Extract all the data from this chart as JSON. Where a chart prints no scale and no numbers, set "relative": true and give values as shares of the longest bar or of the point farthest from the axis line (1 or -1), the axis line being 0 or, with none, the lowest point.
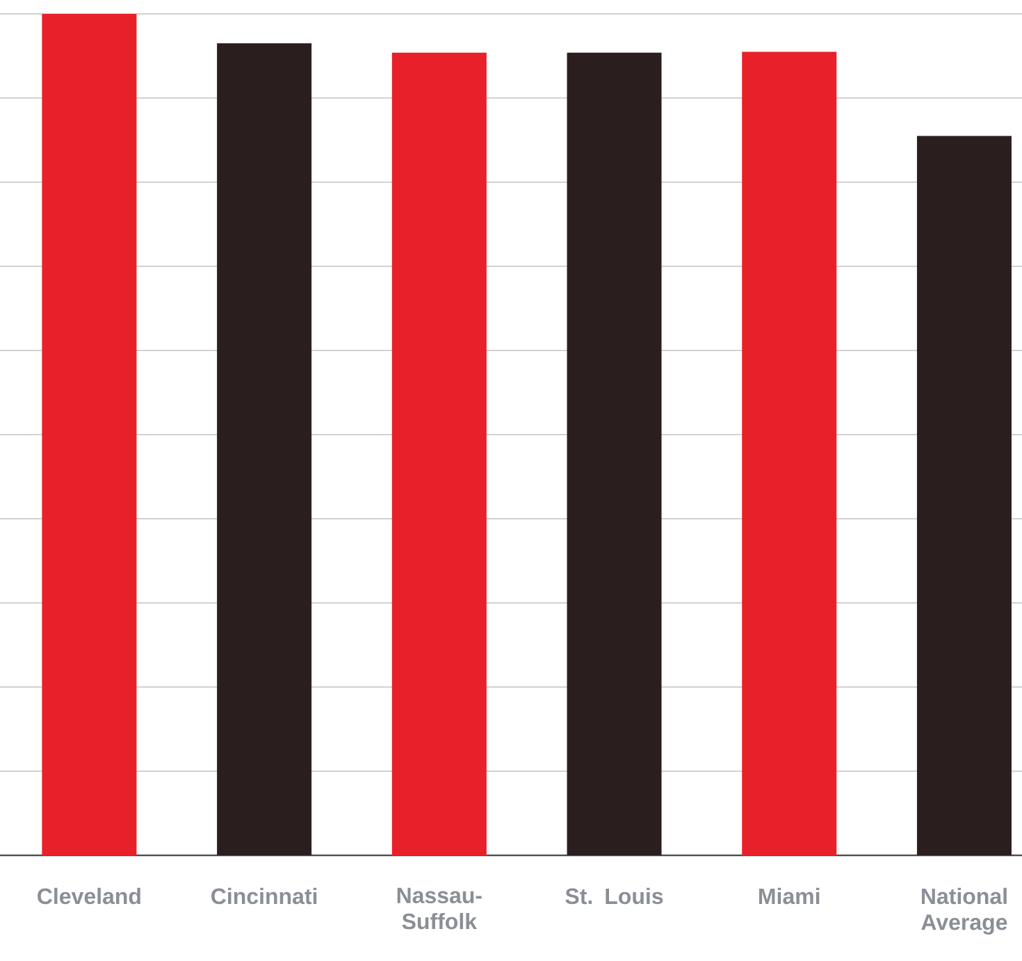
{
  "chart_data": {
    "type": "bar",
    "relative": true,
    "grid": "y",
    "categories": [
      "Cleveland",
      "Cincinnati",
      "Nassau-Suffolk",
      "St. Louis",
      "Miami",
      "National Average"
    ],
    "values": [
      1,
      0.965,
      0.954,
      0.954,
      0.955,
      0.855
    ],
    "colors": [
      "#e8202a",
      "#2a1e1e",
      "#e8202a",
      "#2a1e1e",
      "#e8202a",
      "#2a1e1e"
    ]
  }
}
